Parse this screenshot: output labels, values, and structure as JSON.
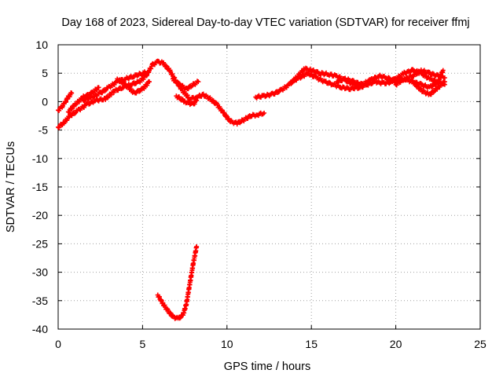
{
  "chart_data": {
    "type": "scatter",
    "title": "Day 168 of 2023, Sidereal Day-to-day VTEC variation (SDTVAR) for receiver ffmj",
    "xlabel": "GPS time / hours",
    "ylabel": "SDTVAR / TECUs",
    "xlim": [
      0,
      25
    ],
    "ylim": [
      -40,
      10
    ],
    "xticks": [
      0,
      5,
      10,
      15,
      20,
      25
    ],
    "yticks": [
      10,
      5,
      0,
      -5,
      -10,
      -15,
      -20,
      -25,
      -30,
      -35,
      -40
    ],
    "grid": true,
    "marker": "plus",
    "series": [
      {
        "name": "track-1",
        "color": "#ff0000",
        "points": [
          [
            0.0,
            -4.5
          ],
          [
            0.3,
            -3.8
          ],
          [
            0.7,
            -2.5
          ],
          [
            1.2,
            -1.5
          ],
          [
            1.7,
            -0.5
          ],
          [
            2.2,
            0.2
          ],
          [
            2.8,
            0.5
          ],
          [
            3.3,
            1.8
          ],
          [
            3.8,
            2.5
          ],
          [
            4.3,
            3.0
          ],
          [
            4.8,
            3.5
          ],
          [
            5.2,
            4.5
          ],
          [
            5.6,
            6.5
          ],
          [
            5.9,
            7.0
          ],
          [
            6.2,
            6.8
          ],
          [
            6.6,
            5.5
          ],
          [
            7.0,
            3.5
          ],
          [
            7.4,
            1.8
          ],
          [
            7.8,
            0.5
          ],
          [
            8.2,
            0.8
          ],
          [
            8.6,
            1.2
          ],
          [
            9.0,
            0.5
          ],
          [
            9.4,
            -0.5
          ],
          [
            9.8,
            -2.0
          ],
          [
            10.2,
            -3.5
          ],
          [
            10.6,
            -3.8
          ],
          [
            11.0,
            -3.2
          ],
          [
            11.4,
            -2.5
          ],
          [
            11.8,
            -2.3
          ],
          [
            12.2,
            -2.0
          ]
        ]
      },
      {
        "name": "track-2",
        "color": "#ff0000",
        "points": [
          [
            0.0,
            -1.5
          ],
          [
            0.2,
            -1.0
          ],
          [
            0.4,
            -0.2
          ],
          [
            0.6,
            0.8
          ],
          [
            0.8,
            1.5
          ]
        ]
      },
      {
        "name": "track-3",
        "color": "#ff0000",
        "points": [
          [
            0.6,
            -1.8
          ],
          [
            1.0,
            -0.5
          ],
          [
            1.5,
            0.8
          ],
          [
            2.0,
            1.5
          ],
          [
            2.4,
            2.5
          ]
        ]
      },
      {
        "name": "track-4",
        "color": "#ff0000",
        "points": [
          [
            1.5,
            0.2
          ],
          [
            2.0,
            0.8
          ],
          [
            2.5,
            1.5
          ],
          [
            3.0,
            2.5
          ],
          [
            3.5,
            3.5
          ],
          [
            4.0,
            4.0
          ],
          [
            4.5,
            4.5
          ],
          [
            5.0,
            5.0
          ],
          [
            5.3,
            5.2
          ]
        ]
      },
      {
        "name": "track-5",
        "color": "#ff0000",
        "points": [
          [
            3.5,
            4.0
          ],
          [
            4.0,
            3.0
          ],
          [
            4.5,
            1.5
          ],
          [
            5.0,
            2.2
          ],
          [
            5.4,
            3.5
          ]
        ]
      },
      {
        "name": "track-6",
        "color": "#ff0000",
        "points": [
          [
            6.8,
            4.0
          ],
          [
            7.2,
            3.0
          ],
          [
            7.6,
            2.2
          ],
          [
            8.0,
            3.0
          ],
          [
            8.3,
            3.5
          ]
        ]
      },
      {
        "name": "track-7",
        "color": "#ff0000",
        "points": [
          [
            7.0,
            1.0
          ],
          [
            7.5,
            0.0
          ],
          [
            8.0,
            -0.5
          ],
          [
            8.2,
            0.2
          ]
        ]
      },
      {
        "name": "track-8",
        "color": "#ff0000",
        "points": [
          [
            11.7,
            0.8
          ],
          [
            12.2,
            1.0
          ],
          [
            12.7,
            1.3
          ],
          [
            13.2,
            2.0
          ],
          [
            13.7,
            3.0
          ],
          [
            14.2,
            4.5
          ],
          [
            14.6,
            5.8
          ],
          [
            15.0,
            5.5
          ],
          [
            15.5,
            5.0
          ],
          [
            16.0,
            4.8
          ],
          [
            16.5,
            4.5
          ],
          [
            17.0,
            3.8
          ],
          [
            17.5,
            3.0
          ],
          [
            18.0,
            2.5
          ]
        ]
      },
      {
        "name": "track-9",
        "color": "#ff0000",
        "points": [
          [
            13.8,
            3.5
          ],
          [
            14.3,
            4.2
          ],
          [
            14.8,
            5.0
          ],
          [
            15.3,
            4.2
          ],
          [
            15.8,
            3.5
          ],
          [
            16.3,
            3.0
          ],
          [
            16.8,
            2.5
          ],
          [
            17.3,
            2.3
          ],
          [
            17.8,
            2.5
          ],
          [
            18.3,
            3.0
          ],
          [
            18.8,
            3.5
          ],
          [
            19.3,
            3.2
          ],
          [
            19.8,
            3.5
          ]
        ]
      },
      {
        "name": "track-10",
        "color": "#ff0000",
        "points": [
          [
            16.5,
            3.5
          ],
          [
            17.0,
            4.0
          ],
          [
            17.5,
            3.5
          ],
          [
            18.0,
            3.0
          ],
          [
            18.5,
            3.8
          ],
          [
            19.0,
            4.5
          ],
          [
            19.5,
            4.2
          ],
          [
            20.0,
            3.5
          ],
          [
            20.5,
            4.0
          ],
          [
            21.0,
            4.5
          ],
          [
            21.5,
            5.5
          ],
          [
            22.0,
            5.0
          ],
          [
            22.5,
            4.5
          ],
          [
            22.9,
            4.2
          ]
        ]
      },
      {
        "name": "track-11",
        "color": "#ff0000",
        "points": [
          [
            19.5,
            3.5
          ],
          [
            20.0,
            4.0
          ],
          [
            20.5,
            5.0
          ],
          [
            21.0,
            5.5
          ],
          [
            21.5,
            5.0
          ],
          [
            22.0,
            4.0
          ],
          [
            22.5,
            3.5
          ],
          [
            22.9,
            3.0
          ]
        ]
      },
      {
        "name": "track-12",
        "color": "#ff0000",
        "points": [
          [
            20.0,
            3.0
          ],
          [
            20.5,
            4.0
          ],
          [
            21.0,
            3.5
          ],
          [
            21.5,
            3.0
          ],
          [
            22.0,
            2.5
          ],
          [
            22.5,
            3.5
          ],
          [
            22.8,
            5.5
          ]
        ]
      },
      {
        "name": "track-13",
        "color": "#ff0000",
        "points": [
          [
            21.0,
            3.5
          ],
          [
            21.5,
            2.0
          ],
          [
            22.0,
            1.2
          ],
          [
            22.5,
            2.5
          ],
          [
            22.9,
            3.5
          ]
        ]
      },
      {
        "name": "track-14",
        "color": "#ff0000",
        "points": [
          [
            5.9,
            -34.0
          ],
          [
            6.2,
            -35.5
          ],
          [
            6.5,
            -36.8
          ],
          [
            6.8,
            -37.8
          ],
          [
            7.1,
            -38.2
          ],
          [
            7.4,
            -37.5
          ],
          [
            7.6,
            -35.5
          ],
          [
            7.8,
            -32.0
          ],
          [
            8.0,
            -28.5
          ],
          [
            8.2,
            -25.5
          ]
        ]
      }
    ]
  }
}
